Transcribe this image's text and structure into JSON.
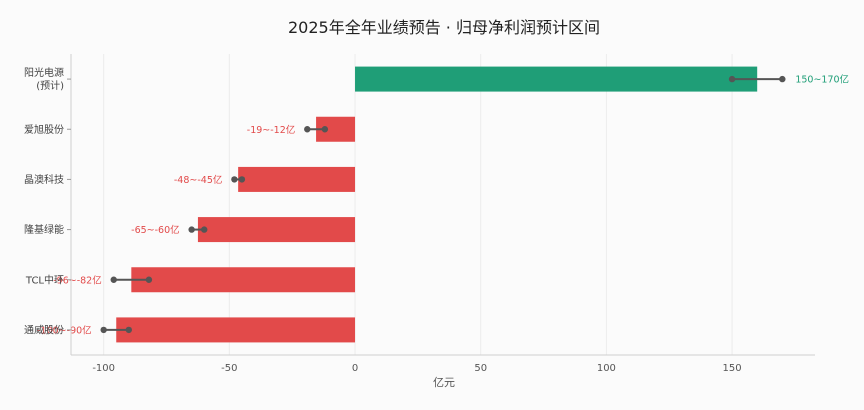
{
  "chart_data": {
    "type": "bar",
    "orientation": "horizontal",
    "title": "2025年全年业绩预告 · 归母净利润预计区间",
    "xlabel": "亿元",
    "ylabel": "",
    "xlim": [
      -113,
      183
    ],
    "xticks": [
      -100,
      -50,
      0,
      50,
      100,
      150
    ],
    "grid": "x",
    "categories": [
      {
        "name": "阳光电源",
        "sub": "(预计)"
      },
      {
        "name": "爱旭股份",
        "sub": ""
      },
      {
        "name": "晶澳科技",
        "sub": ""
      },
      {
        "name": "隆基绿能",
        "sub": ""
      },
      {
        "name": "TCL中环",
        "sub": ""
      },
      {
        "name": "通威股份",
        "sub": ""
      }
    ],
    "bars": [
      {
        "value": 160,
        "range": [
          150,
          170
        ],
        "label": "150~170亿"
      },
      {
        "value": -15.5,
        "range": [
          -19,
          -12
        ],
        "label": "-19~-12亿"
      },
      {
        "value": -46.5,
        "range": [
          -48,
          -45
        ],
        "label": "-48~-45亿"
      },
      {
        "value": -62.5,
        "range": [
          -65,
          -60
        ],
        "label": "-65~-60亿"
      },
      {
        "value": -89,
        "range": [
          -96,
          -82
        ],
        "label": "-96~-82亿"
      },
      {
        "value": -95,
        "range": [
          -100,
          -90
        ],
        "label": "-100~-90亿"
      }
    ],
    "colors": {
      "positive": "#1f9e77",
      "negative": "#e24a4a",
      "range_line": "#555555"
    }
  }
}
